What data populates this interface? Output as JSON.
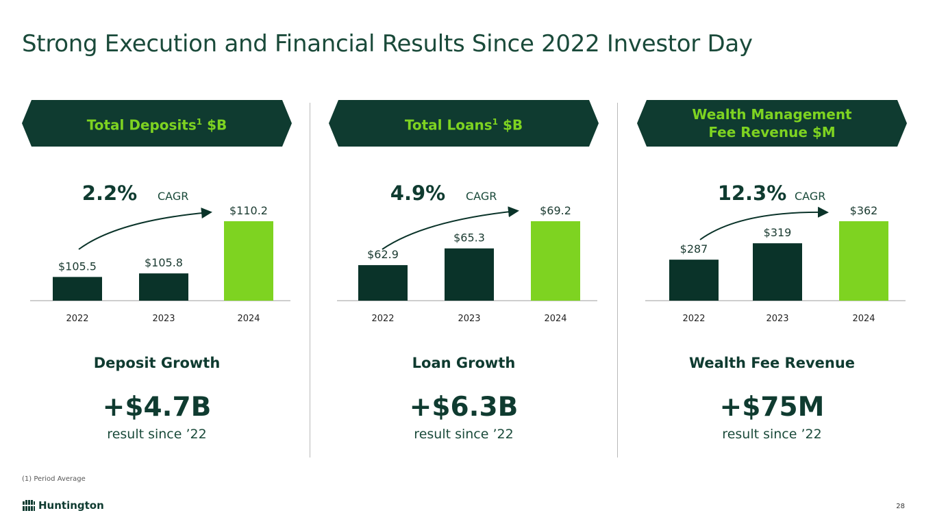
{
  "title": "Strong Execution and Financial Results Since 2022 Investor Day",
  "panels": [
    {
      "banner": "Total Deposits",
      "banner_sup": "1",
      "banner_tail": " $B",
      "cagr_value": "2.2%",
      "cagr_label": "CAGR",
      "metric_label": "Deposit Growth",
      "metric_value": "+$4.7B",
      "metric_sub": "result since ’22"
    },
    {
      "banner": "Total Loans",
      "banner_sup": "1",
      "banner_tail": " $B",
      "cagr_value": "4.9%",
      "cagr_label": "CAGR",
      "metric_label": "Loan Growth",
      "metric_value": "+$6.3B",
      "metric_sub": "result since ’22"
    },
    {
      "banner": "Wealth Management Fee Revenue $M",
      "banner_sup": "",
      "banner_tail": "",
      "cagr_value": "12.3%",
      "cagr_label": "CAGR",
      "metric_label": "Wealth Fee Revenue",
      "metric_value": "+$75M",
      "metric_sub": "result since ’22"
    }
  ],
  "chart_data": [
    {
      "type": "bar",
      "categories": [
        "2022",
        "2023",
        "2024"
      ],
      "values": [
        105.5,
        105.8,
        110.2
      ],
      "data_labels": [
        "$105.5",
        "$105.8",
        "$110.2"
      ],
      "title": "Total Deposits1 $B",
      "ylim": [
        103.5,
        110.2
      ],
      "colors": [
        "#0a3329",
        "#0a3329",
        "#7ed321"
      ]
    },
    {
      "type": "bar",
      "categories": [
        "2022",
        "2023",
        "2024"
      ],
      "values": [
        62.9,
        65.3,
        69.2
      ],
      "data_labels": [
        "$62.9",
        "$65.3",
        "$69.2"
      ],
      "title": "Total Loans1 $B",
      "ylim": [
        57.8,
        69.2
      ],
      "colors": [
        "#0a3329",
        "#0a3329",
        "#7ed321"
      ]
    },
    {
      "type": "bar",
      "categories": [
        "2022",
        "2023",
        "2024"
      ],
      "values": [
        287,
        319,
        362
      ],
      "data_labels": [
        "$287",
        "$319",
        "$362"
      ],
      "title": "Wealth Management Fee Revenue $M",
      "ylim": [
        207,
        362
      ],
      "colors": [
        "#0a3329",
        "#0a3329",
        "#7ed321"
      ]
    }
  ],
  "footnote": "(1) Period Average",
  "logo_text": "Huntington",
  "page_number": "28",
  "colors": {
    "dark_green": "#0a3329",
    "accent_green": "#7ed321",
    "banner_bg": "#0f3b30"
  }
}
